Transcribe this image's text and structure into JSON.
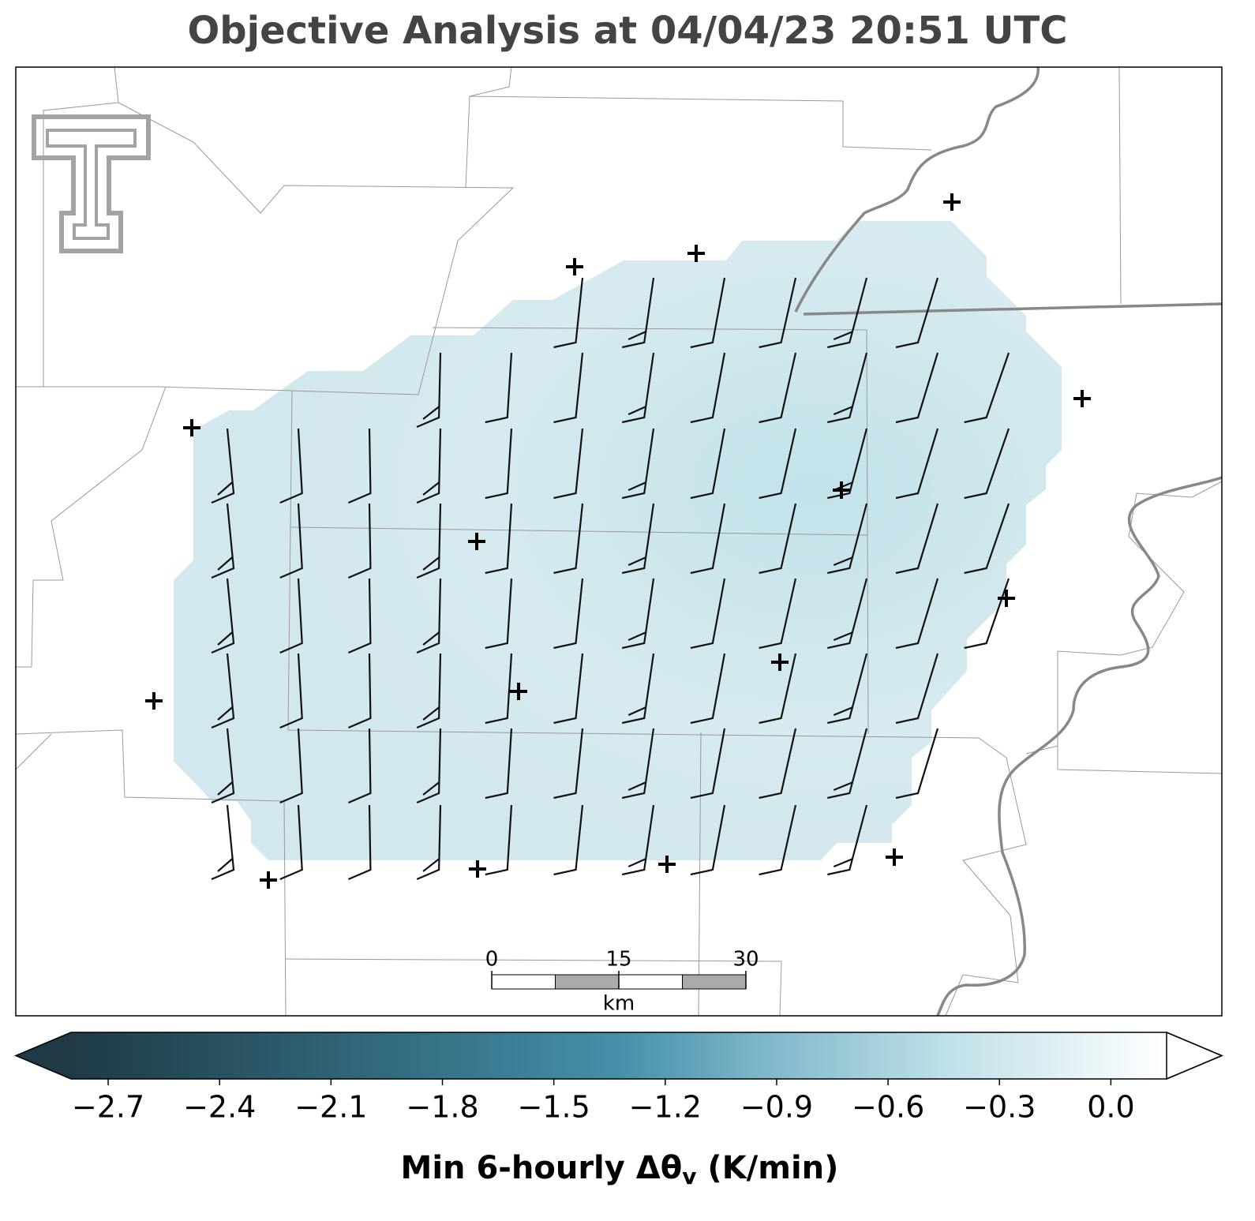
{
  "title": "Objective Analysis at 04/04/23 20:51 UTC",
  "scale_bar": {
    "ticks": [
      0,
      15,
      30
    ],
    "unit": "km"
  },
  "colorbar": {
    "label": "Min 6-hourly Δθ",
    "label_subscript": "v",
    "label_units": "(K/min)",
    "lim": [
      -2.8,
      0.15
    ],
    "ticks": [
      {
        "value": -2.7,
        "label": "−2.7"
      },
      {
        "value": -2.4,
        "label": "−2.4"
      },
      {
        "value": -2.1,
        "label": "−2.1"
      },
      {
        "value": -1.8,
        "label": "−1.8"
      },
      {
        "value": -1.5,
        "label": "−1.5"
      },
      {
        "value": -1.2,
        "label": "−1.2"
      },
      {
        "value": -0.9,
        "label": "−0.9"
      },
      {
        "value": -0.6,
        "label": "−0.6"
      },
      {
        "value": -0.3,
        "label": "−0.3"
      },
      {
        "value": 0.0,
        "label": "0.0"
      }
    ]
  }
}
